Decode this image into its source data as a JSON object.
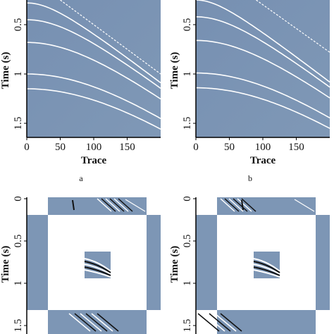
{
  "panels": [
    {
      "caption": "a",
      "ylabel": "Time (s)",
      "xlabel": "Trace",
      "yticks": [
        0.5,
        1,
        1.5
      ],
      "xticks": [
        0,
        50,
        100,
        150
      ]
    },
    {
      "caption": "b",
      "ylabel": "Time (s)",
      "xlabel": "Trace",
      "yticks": [
        0.5,
        1,
        1.5
      ],
      "xticks": [
        0,
        50,
        100,
        150
      ]
    },
    {
      "ylabel": "Time (s)",
      "yticks": [
        0,
        0.5,
        1,
        1.5
      ]
    },
    {
      "ylabel": "Time (s)",
      "yticks": [
        0,
        0.5,
        1,
        1.5
      ]
    }
  ]
}
